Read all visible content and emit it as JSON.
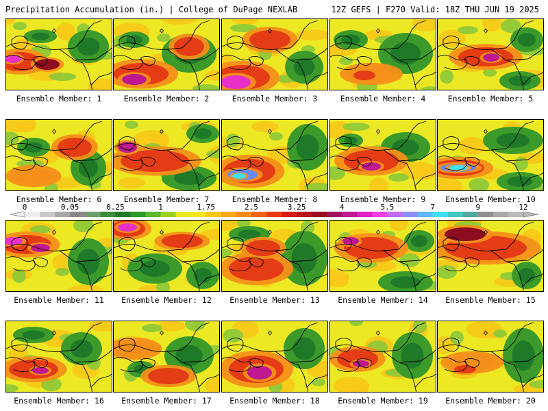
{
  "header": {
    "title_left": "Precipitation Accumulation (in.) | College of DuPage NEXLAB",
    "title_right": "12Z GEFS | F270 Valid: 18Z THU JUN 19 2025"
  },
  "colorbar": {
    "tick_labels": [
      "0",
      "0.05",
      "0.25",
      "1",
      "1.75",
      "2.5",
      "3.25",
      "4",
      "5.5",
      "7",
      "9",
      "12"
    ],
    "colors": [
      "#eeeeee",
      "#c8c8c8",
      "#a8a8a8",
      "#888888",
      "#6e9e70",
      "#3c8c3c",
      "#1e7a28",
      "#2a9a2a",
      "#5ab82a",
      "#9ad21e",
      "#e8e820",
      "#f6e61a",
      "#f8c818",
      "#f8a818",
      "#f48a18",
      "#ef6414",
      "#e83c12",
      "#d81a12",
      "#b8141a",
      "#9a0c1e",
      "#a01060",
      "#c01890",
      "#e020c0",
      "#f040e0",
      "#c06cf0",
      "#8a90f8",
      "#60b8f8",
      "#40e0f0",
      "#40c8c0",
      "#50a8a0",
      "#909090",
      "#a8a8a8",
      "#bbbbbb"
    ]
  },
  "panels": [
    {
      "caption": "Ensemble Member: 1"
    },
    {
      "caption": "Ensemble Member: 2"
    },
    {
      "caption": "Ensemble Member: 3"
    },
    {
      "caption": "Ensemble Member: 4"
    },
    {
      "caption": "Ensemble Member: 5"
    },
    {
      "caption": "Ensemble Member: 6"
    },
    {
      "caption": "Ensemble Member: 7"
    },
    {
      "caption": "Ensemble Member: 8"
    },
    {
      "caption": "Ensemble Member: 9"
    },
    {
      "caption": "Ensemble Member: 10"
    },
    {
      "caption": "Ensemble Member: 11"
    },
    {
      "caption": "Ensemble Member: 12"
    },
    {
      "caption": "Ensemble Member: 13"
    },
    {
      "caption": "Ensemble Member: 14"
    },
    {
      "caption": "Ensemble Member: 15"
    },
    {
      "caption": "Ensemble Member: 16"
    },
    {
      "caption": "Ensemble Member: 17"
    },
    {
      "caption": "Ensemble Member: 18"
    },
    {
      "caption": "Ensemble Member: 19"
    },
    {
      "caption": "Ensemble Member: 20"
    }
  ],
  "precip_colors": {
    "green_dark": "#1e7a28",
    "green": "#3c9a2a",
    "green_light": "#8cc83a",
    "yellow": "#ece824",
    "yellow_orange": "#f8c818",
    "orange": "#f4901a",
    "red": "#e43c14",
    "red_dark": "#b8141a",
    "maroon": "#8c0c20",
    "magenta": "#c01890",
    "pink": "#e830c8",
    "blue": "#6888f8",
    "cyan": "#40e0f0"
  }
}
